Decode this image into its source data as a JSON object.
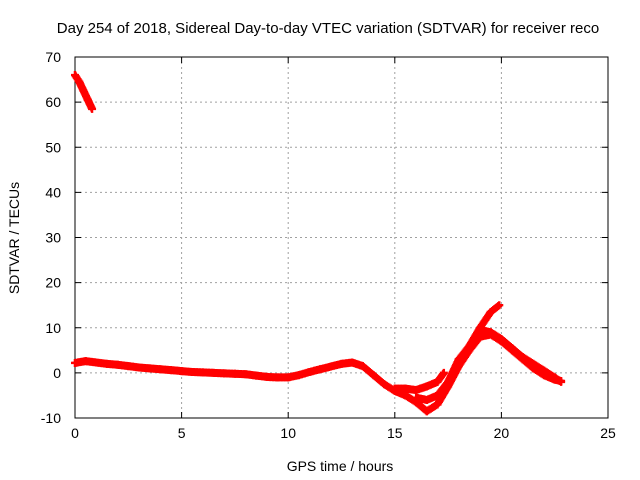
{
  "chart_data": {
    "type": "scatter",
    "title": "Day 254 of 2018, Sidereal Day-to-day VTEC variation (SDTVAR) for receiver reco",
    "xlabel": "GPS time / hours",
    "ylabel": "SDTVAR / TECUs",
    "xlim": [
      0,
      25
    ],
    "ylim": [
      -10,
      70
    ],
    "xticks": [
      "0",
      "5",
      "10",
      "15",
      "20",
      "25"
    ],
    "yticks": [
      "-10",
      "0",
      "10",
      "20",
      "30",
      "40",
      "50",
      "60",
      "70"
    ],
    "grid": true,
    "legend": "none",
    "series": [
      {
        "name": "SDTVAR",
        "color": "#ff0000",
        "marker": "plus",
        "segments": [
          [
            [
              0.0,
              66
            ],
            [
              0.2,
              64.5
            ],
            [
              0.4,
              62.5
            ],
            [
              0.6,
              60.5
            ],
            [
              0.8,
              58.5
            ]
          ],
          [
            [
              0,
              2.2
            ],
            [
              0.5,
              2.6
            ],
            [
              1.0,
              2.3
            ],
            [
              1.5,
              2.0
            ],
            [
              2.0,
              1.8
            ],
            [
              2.5,
              1.5
            ],
            [
              3.0,
              1.2
            ],
            [
              3.5,
              1.0
            ],
            [
              4.0,
              0.8
            ],
            [
              4.5,
              0.6
            ],
            [
              5.0,
              0.4
            ],
            [
              5.5,
              0.2
            ],
            [
              6.0,
              0.1
            ],
            [
              6.5,
              0.0
            ],
            [
              7.0,
              -0.1
            ],
            [
              7.5,
              -0.2
            ],
            [
              8.0,
              -0.3
            ],
            [
              8.5,
              -0.6
            ],
            [
              9.0,
              -0.9
            ],
            [
              9.5,
              -1.0
            ],
            [
              10.0,
              -1.0
            ],
            [
              10.5,
              -0.5
            ],
            [
              11.0,
              0.2
            ],
            [
              11.5,
              0.8
            ],
            [
              12.0,
              1.4
            ],
            [
              12.5,
              2.0
            ],
            [
              13.0,
              2.3
            ],
            [
              13.5,
              1.5
            ],
            [
              14.0,
              -0.5
            ],
            [
              14.5,
              -2.5
            ],
            [
              15.0,
              -4.0
            ],
            [
              15.5,
              -5.0
            ],
            [
              16.0,
              -6.5
            ],
            [
              16.5,
              -8.5
            ],
            [
              17.0,
              -7.0
            ],
            [
              17.5,
              -3.0
            ],
            [
              18.0,
              1.5
            ],
            [
              18.5,
              5.0
            ],
            [
              19.0,
              8.0
            ],
            [
              19.5,
              8.5
            ],
            [
              20.0,
              7.0
            ],
            [
              20.5,
              5.0
            ],
            [
              21.0,
              3.0
            ],
            [
              21.5,
              1.0
            ],
            [
              22.0,
              -0.5
            ],
            [
              22.5,
              -1.5
            ],
            [
              22.8,
              -1.8
            ]
          ],
          [
            [
              15.0,
              -3.5
            ],
            [
              15.5,
              -3.5
            ],
            [
              16.0,
              -3.8
            ],
            [
              16.5,
              -3.0
            ],
            [
              17.0,
              -2.0
            ],
            [
              17.3,
              0.0
            ]
          ],
          [
            [
              16.0,
              -5.5
            ],
            [
              16.5,
              -6.0
            ],
            [
              17.0,
              -5.0
            ],
            [
              17.5,
              -2.0
            ],
            [
              18.0,
              3.0
            ],
            [
              18.5,
              6.0
            ],
            [
              19.0,
              10.0
            ],
            [
              19.5,
              13.5
            ],
            [
              19.9,
              15.0
            ]
          ],
          [
            [
              19.0,
              9.5
            ],
            [
              19.5,
              9.0
            ],
            [
              20.0,
              7.5
            ],
            [
              20.5,
              5.5
            ],
            [
              21.0,
              3.5
            ],
            [
              21.5,
              2.0
            ],
            [
              22.0,
              0.5
            ],
            [
              22.5,
              -1.0
            ],
            [
              22.8,
              -2.0
            ]
          ]
        ]
      }
    ]
  }
}
